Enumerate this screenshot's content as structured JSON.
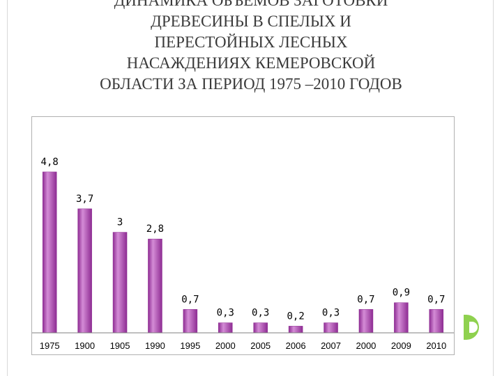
{
  "slide": {
    "title_lines": [
      "ДИНАМИКА ОБЪЕМОВ ЗАГОТОВКИ",
      "ДРЕВЕСИНЫ В СПЕЛЫХ И",
      "ПЕРЕСТОЙНЫХ ЛЕСНЫХ",
      "НАСАЖДЕНИЯХ КЕМЕРОВСКОЙ",
      "ОБЛАСТИ ЗА ПЕРИОД 1975 –2010 ГОДОВ"
    ]
  },
  "colors": {
    "bar_fill": "#8e2c93",
    "bar_highlight": "#d48cd6",
    "axis": "#7f7f7f",
    "accent_tab": "#8fd14f"
  },
  "chart_data": {
    "type": "bar",
    "title": "",
    "xlabel": "",
    "ylabel": "",
    "categories": [
      "1975",
      "1900",
      "1905",
      "1990",
      "1995",
      "2000",
      "2005",
      "2006",
      "2007",
      "2000",
      "2009",
      "2010"
    ],
    "values": [
      4.8,
      3.7,
      3,
      2.8,
      0.7,
      0.3,
      0.3,
      0.2,
      0.3,
      0.7,
      0.9,
      0.7
    ],
    "data_labels": [
      "4,8",
      "3,7",
      "3",
      "2,8",
      "0,7",
      "0,3",
      "0,3",
      "0,2",
      "0,3",
      "0,7",
      "0,9",
      "0,7"
    ],
    "ylim": [
      0,
      5.4
    ],
    "grid": false,
    "legend": "none"
  }
}
